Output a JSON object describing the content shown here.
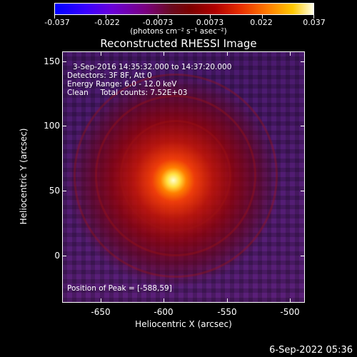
{
  "colorbar": {
    "tick_labels": [
      "-0.037",
      "-0.022",
      "-0.0073",
      "0.0073",
      "0.022",
      "0.037"
    ],
    "units": "(photons cm⁻² s⁻¹ asec⁻²)",
    "colormap_colors": [
      "#0000ff",
      "#6a00d8",
      "#7a0000",
      "#ff7a00",
      "#ffffe8"
    ]
  },
  "image": {
    "title": "Reconstructed RHESSI Image",
    "time_range": "3-Sep-2016 14:35:32.000 to 14:37:20.000",
    "detectors": "Detectors: 3F 8F, Att 0",
    "energy_range": "Energy Range: 6.0 - 12.0 keV",
    "method_counts": "Clean     Total counts: 7.52E+03",
    "peak_position": "Position of Peak = [-588,59]"
  },
  "axes": {
    "x_title": "Heliocentric X (arcsec)",
    "y_title": "Heliocentric Y (arcsec)",
    "x_tick_labels": [
      "-650",
      "-600",
      "-550",
      "-500"
    ],
    "y_tick_labels": [
      "150",
      "100",
      "50",
      "0"
    ],
    "x_range": [
      -680,
      -488
    ],
    "y_range": [
      -36,
      159
    ]
  },
  "footer": {
    "date": "6-Sep-2022 05:36"
  }
}
